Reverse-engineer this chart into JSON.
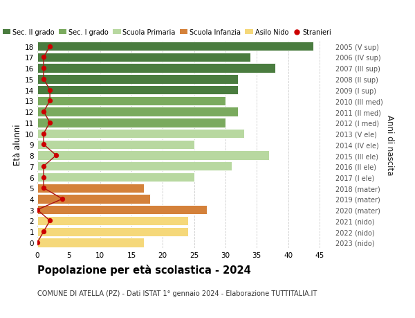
{
  "ages": [
    18,
    17,
    16,
    15,
    14,
    13,
    12,
    11,
    10,
    9,
    8,
    7,
    6,
    5,
    4,
    3,
    2,
    1,
    0
  ],
  "right_labels": [
    "2005 (V sup)",
    "2006 (IV sup)",
    "2007 (III sup)",
    "2008 (II sup)",
    "2009 (I sup)",
    "2010 (III med)",
    "2011 (II med)",
    "2012 (I med)",
    "2013 (V ele)",
    "2014 (IV ele)",
    "2015 (III ele)",
    "2016 (II ele)",
    "2017 (I ele)",
    "2018 (mater)",
    "2019 (mater)",
    "2020 (mater)",
    "2021 (nido)",
    "2022 (nido)",
    "2023 (nido)"
  ],
  "bar_values": [
    44,
    34,
    38,
    32,
    32,
    30,
    32,
    30,
    33,
    25,
    37,
    31,
    25,
    17,
    18,
    27,
    24,
    24,
    17
  ],
  "stranieri_values": [
    2,
    1,
    1,
    1,
    2,
    2,
    1,
    2,
    1,
    1,
    3,
    1,
    1,
    1,
    4,
    0,
    2,
    1,
    0
  ],
  "bar_colors": [
    "#4a7c3f",
    "#4a7c3f",
    "#4a7c3f",
    "#4a7c3f",
    "#4a7c3f",
    "#7aaa5e",
    "#7aaa5e",
    "#7aaa5e",
    "#b8d8a0",
    "#b8d8a0",
    "#b8d8a0",
    "#b8d8a0",
    "#b8d8a0",
    "#d4813a",
    "#d4813a",
    "#d4813a",
    "#f5d87a",
    "#f5d87a",
    "#f5d87a"
  ],
  "legend_labels": [
    "Sec. II grado",
    "Sec. I grado",
    "Scuola Primaria",
    "Scuola Infanzia",
    "Asilo Nido",
    "Stranieri"
  ],
  "legend_colors": [
    "#4a7c3f",
    "#7aaa5e",
    "#b8d8a0",
    "#d4813a",
    "#f5d87a",
    "#cc0000"
  ],
  "title": "Popolazione per età scolastica - 2024",
  "subtitle": "COMUNE DI ATELLA (PZ) - Dati ISTAT 1° gennaio 2024 - Elaborazione TUTTITALIA.IT",
  "ylabel_left": "Età alunni",
  "ylabel_right": "Anni di nascita",
  "xlim": [
    0,
    47
  ],
  "ylim": [
    -0.5,
    18.5
  ],
  "bg_color": "#ffffff",
  "grid_color": "#cccccc",
  "stranieri_line_color": "#aa1111",
  "stranieri_dot_color": "#cc0000"
}
